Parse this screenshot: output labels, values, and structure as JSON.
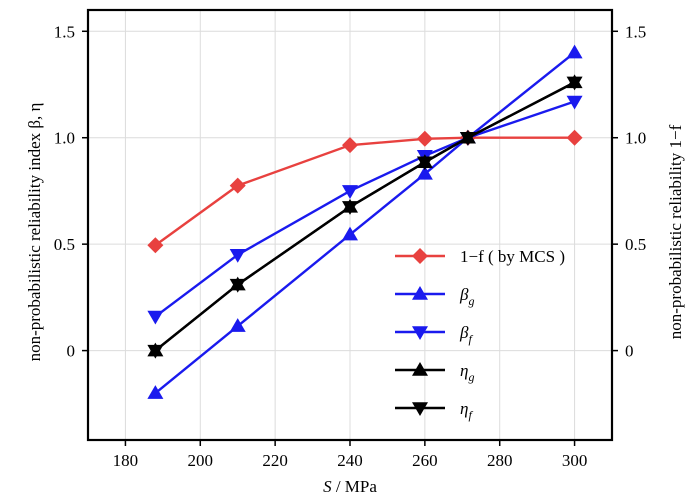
{
  "chart_data": {
    "type": "line",
    "xlabel": "S / MPa",
    "ylabel_left": "non-probabilistic reliability index β, η",
    "ylabel_right": "non-probabilistic reliability  1−f",
    "xlim": [
      170,
      310
    ],
    "ylim": [
      -0.42,
      1.6
    ],
    "ylim_right": [
      -0.42,
      1.6
    ],
    "xticks": [
      180,
      200,
      220,
      240,
      260,
      280,
      300
    ],
    "yticks": [
      0,
      0.5,
      1.0,
      1.5
    ],
    "ytick_labels": [
      "0",
      "0.5",
      "1.0",
      "1.5"
    ],
    "grid": true,
    "legend_position": "bottom-right",
    "series": [
      {
        "name": "1−f (by MCS)",
        "color": "#e8413f",
        "marker": "diamond",
        "x": [
          188,
          210,
          240,
          260,
          271.5,
          300
        ],
        "y": [
          0.495,
          0.775,
          0.965,
          0.995,
          1.0,
          1.0
        ]
      },
      {
        "name": "β_g",
        "color": "#1a1aee",
        "marker": "triangle-up",
        "x": [
          188,
          210,
          240,
          260,
          271.5,
          300
        ],
        "y": [
          -0.2,
          0.115,
          0.545,
          0.83,
          1.0,
          1.4
        ]
      },
      {
        "name": "β_f",
        "color": "#1a1aee",
        "marker": "triangle-down",
        "x": [
          188,
          210,
          240,
          260,
          271.5,
          300
        ],
        "y": [
          0.16,
          0.45,
          0.75,
          0.915,
          1.0,
          1.17
        ]
      },
      {
        "name": "η_g",
        "color": "#000000",
        "marker": "triangle-up",
        "x": [
          188,
          210,
          240,
          260,
          271.5,
          300
        ],
        "y": [
          0.0,
          0.31,
          0.675,
          0.885,
          1.0,
          1.26
        ]
      },
      {
        "name": "η_f",
        "color": "#000000",
        "marker": "triangle-down",
        "x": [
          188,
          210,
          240,
          260,
          271.5,
          300
        ],
        "y": [
          0.0,
          0.31,
          0.675,
          0.885,
          1.0,
          1.26
        ]
      }
    ],
    "legend": {
      "entries": [
        {
          "main": "1−f",
          "rest": " ( by MCS )"
        },
        {
          "main": "β",
          "sub": "g"
        },
        {
          "main": "β",
          "sub": "f"
        },
        {
          "main": "η",
          "sub": "g"
        },
        {
          "main": "η",
          "sub": "f"
        }
      ]
    }
  }
}
